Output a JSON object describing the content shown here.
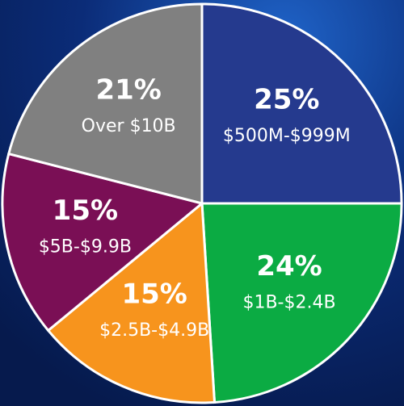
{
  "chart_data": {
    "type": "pie",
    "categories": [
      "$500M-$999M",
      "$1B-$2.4B",
      "$2.5B-$4.9B",
      "$5B-$9.9B",
      "Over $10B"
    ],
    "values": [
      25,
      24,
      15,
      15,
      21
    ],
    "value_labels": [
      "25%",
      "24%",
      "15%",
      "15%",
      "21%"
    ],
    "colors": [
      "#253a8e",
      "#0bab43",
      "#f7941d",
      "#7a0f55",
      "#808080"
    ]
  }
}
